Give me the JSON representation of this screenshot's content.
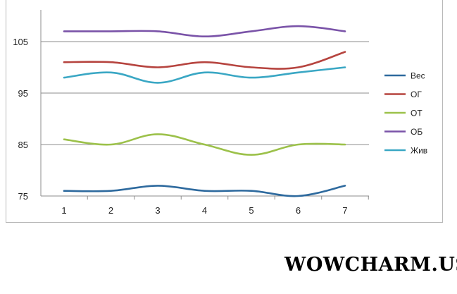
{
  "chart_data": {
    "type": "line",
    "x": [
      1,
      2,
      3,
      4,
      5,
      6,
      7
    ],
    "x_tick_labels": [
      "1",
      "2",
      "3",
      "4",
      "5",
      "6",
      "7"
    ],
    "y_tick_values": [
      75,
      85,
      95,
      105
    ],
    "y_tick_labels": [
      "75",
      "85",
      "95",
      "105"
    ],
    "ylim": [
      75,
      110
    ],
    "grid": "horizontal",
    "legend_position": "right",
    "series": [
      {
        "name": "Вес",
        "color": "#2e6a9e",
        "values": [
          76,
          76,
          77,
          76,
          76,
          75,
          77
        ]
      },
      {
        "name": "ОГ",
        "color": "#b6443f",
        "values": [
          101,
          101,
          100,
          101,
          100,
          100,
          103
        ]
      },
      {
        "name": "ОТ",
        "color": "#9cc14a",
        "values": [
          86,
          85,
          87,
          85,
          83,
          85,
          85
        ]
      },
      {
        "name": "ОБ",
        "color": "#7a53a8",
        "values": [
          107,
          107,
          107,
          106,
          107,
          108,
          107
        ]
      },
      {
        "name": "Жив",
        "color": "#3aa7c4",
        "values": [
          98,
          99,
          97,
          99,
          98,
          99,
          100
        ]
      }
    ]
  },
  "watermark": "WOWCHARM.US"
}
